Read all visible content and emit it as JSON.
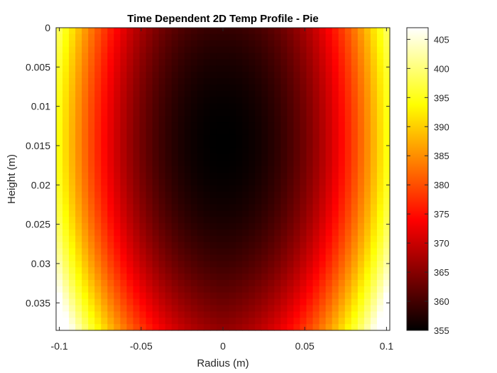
{
  "chart_data": {
    "type": "heatmap",
    "title": "Time Dependent 2D Temp Profile - Pie",
    "xlabel": "Radius (m)",
    "ylabel": "Height (m)",
    "xlim": [
      -0.102,
      0.102
    ],
    "ylim": [
      0,
      0.0385
    ],
    "y_reversed": true,
    "x_ticks": [
      -0.1,
      -0.05,
      0,
      0.05,
      0.1
    ],
    "x_tick_labels": [
      "-0.1",
      "-0.05",
      "0",
      "0.05",
      "0.1"
    ],
    "y_ticks": [
      0,
      0.005,
      0.01,
      0.015,
      0.02,
      0.025,
      0.03,
      0.035
    ],
    "y_tick_labels": [
      "0",
      "0.005",
      "0.01",
      "0.015",
      "0.02",
      "0.025",
      "0.03",
      "0.035"
    ],
    "colormap": "hot",
    "colorbar": {
      "range": [
        355,
        407
      ],
      "ticks": [
        355,
        360,
        365,
        370,
        375,
        380,
        385,
        390,
        395,
        400,
        405
      ],
      "tick_labels": [
        "355",
        "360",
        "365",
        "370",
        "375",
        "380",
        "385",
        "390",
        "395",
        "400",
        "405"
      ]
    },
    "grid": {
      "nx": 52,
      "ny": 48
    },
    "field": {
      "center_x": 0,
      "center_y": 0.0145,
      "center_value": 355,
      "edge_value_mid": 396,
      "edge_value_bottom": 407,
      "x_half_width": 0.102,
      "bottom_rise": 8
    }
  }
}
